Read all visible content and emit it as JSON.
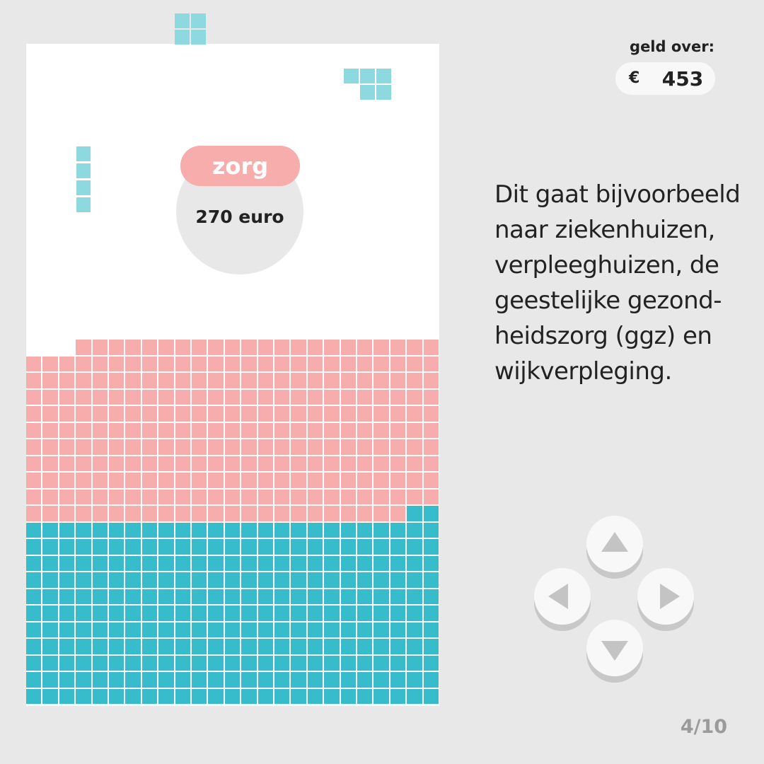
{
  "money": {
    "title": "geld over:",
    "currency_symbol": "€",
    "value": "453"
  },
  "current_piece": {
    "category": "zorg",
    "amount": "270 euro"
  },
  "description": "Dit gaat bijvoorbeeld\nnaar ziekenhuizen,\nverpleeghuizen, de\ngeestelijke gezond-\nheidszorg (ggz) en\nwijkverpleging.",
  "pagination": {
    "indicator": "4/10"
  },
  "controls": {
    "up": "up-arrow-icon",
    "left": "left-arrow-icon",
    "right": "right-arrow-icon",
    "down": "down-arrow-icon"
  },
  "colors": {
    "board_background": "#ffffff",
    "page_background": "#e8e8e8",
    "zorg_pink": "#f8adad",
    "teal_stack": "#36bccb",
    "light_teal_piece": "#8ed8e0",
    "arrow_gray": "#c4c4c4",
    "button_face": "#f8f8f8"
  }
}
